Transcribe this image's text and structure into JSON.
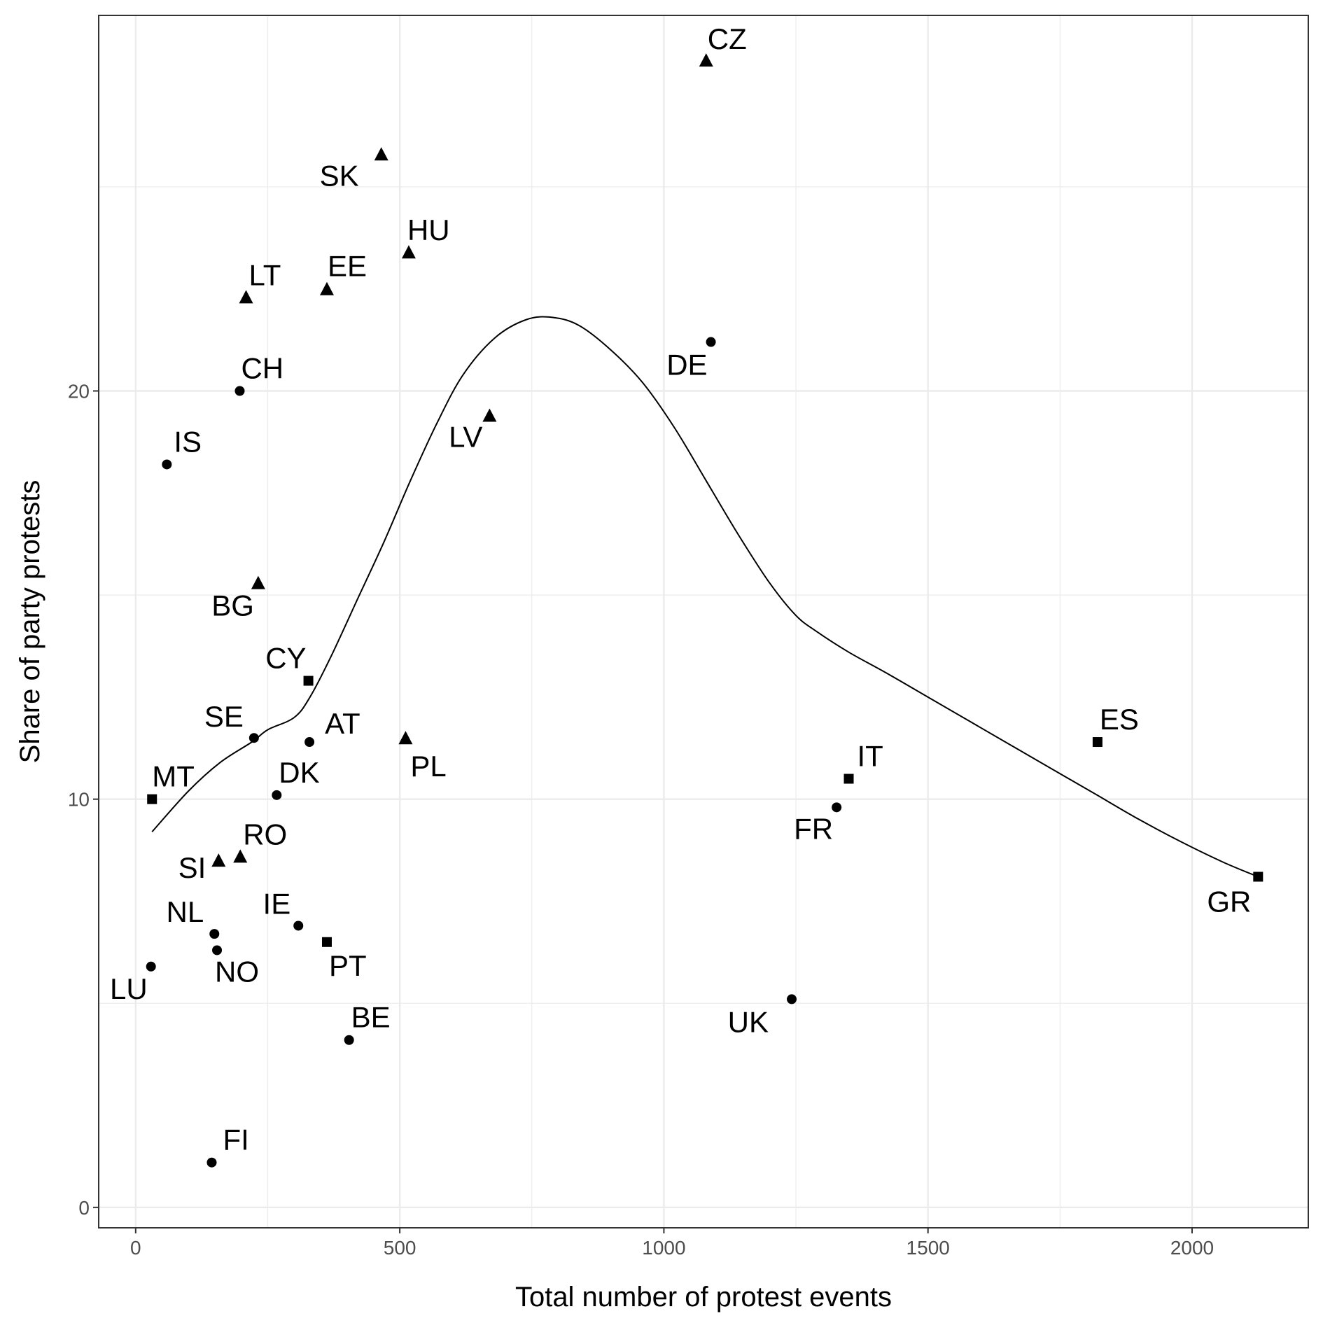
{
  "chart_data": {
    "type": "scatter",
    "title": "",
    "xlabel": "Total number of protest events",
    "ylabel": "Share of party protests",
    "xlim": [
      -70,
      2220
    ],
    "ylim": [
      -0.5,
      29.2
    ],
    "x_ticks": [
      0,
      500,
      1000,
      1500,
      2000
    ],
    "y_ticks": [
      0,
      10,
      20
    ],
    "x_tick_labels": [
      "0",
      "500",
      "1000",
      "1500",
      "2000"
    ],
    "y_tick_labels": [
      "0",
      "10",
      "20"
    ],
    "grid": true,
    "legend": "none",
    "point_color": "#000000",
    "grid_color": "#ebebeb",
    "series": [
      {
        "shape": "triangle",
        "points": [
          {
            "label": "CZ",
            "x": 1080,
            "y": 28.1
          },
          {
            "label": "SK",
            "x": 465,
            "y": 25.8
          },
          {
            "label": "HU",
            "x": 517,
            "y": 23.4
          },
          {
            "label": "EE",
            "x": 362,
            "y": 22.5
          },
          {
            "label": "LT",
            "x": 209,
            "y": 22.3
          },
          {
            "label": "LV",
            "x": 670,
            "y": 19.4
          },
          {
            "label": "BG",
            "x": 232,
            "y": 15.3
          },
          {
            "label": "PL",
            "x": 511,
            "y": 11.5
          },
          {
            "label": "RO",
            "x": 198,
            "y": 8.6
          },
          {
            "label": "SI",
            "x": 157,
            "y": 8.5
          }
        ]
      },
      {
        "shape": "circle",
        "points": [
          {
            "label": "DE",
            "x": 1089,
            "y": 21.2
          },
          {
            "label": "CH",
            "x": 197,
            "y": 20.0
          },
          {
            "label": "IS",
            "x": 59,
            "y": 18.2
          },
          {
            "label": "SE",
            "x": 224,
            "y": 11.5
          },
          {
            "label": "AT",
            "x": 329,
            "y": 11.4
          },
          {
            "label": "DK",
            "x": 267,
            "y": 10.1
          },
          {
            "label": "FR",
            "x": 1327,
            "y": 9.8
          },
          {
            "label": "IE",
            "x": 308,
            "y": 6.9
          },
          {
            "label": "NL",
            "x": 149,
            "y": 6.7
          },
          {
            "label": "NO",
            "x": 154,
            "y": 6.3
          },
          {
            "label": "LU",
            "x": 29,
            "y": 5.9
          },
          {
            "label": "UK",
            "x": 1242,
            "y": 5.1
          },
          {
            "label": "BE",
            "x": 404,
            "y": 4.1
          },
          {
            "label": "FI",
            "x": 144,
            "y": 1.1
          }
        ]
      },
      {
        "shape": "square",
        "points": [
          {
            "label": "CY",
            "x": 327,
            "y": 12.9
          },
          {
            "label": "MT",
            "x": 31,
            "y": 10.0
          },
          {
            "label": "IT",
            "x": 1350,
            "y": 10.5
          },
          {
            "label": "ES",
            "x": 1821,
            "y": 11.4
          },
          {
            "label": "PT",
            "x": 362,
            "y": 6.5
          },
          {
            "label": "GR",
            "x": 2125,
            "y": 8.1
          }
        ]
      }
    ],
    "trend_line": {
      "type": "smooth",
      "x": [
        31,
        100,
        160,
        220,
        250,
        300,
        330,
        370,
        420,
        470,
        520,
        570,
        620,
        680,
        740,
        790,
        840,
        900,
        960,
        1020,
        1080,
        1140,
        1200,
        1250,
        1290,
        1350,
        1420,
        1500,
        1580,
        1660,
        1740,
        1820,
        1900,
        1980,
        2060,
        2125
      ],
      "y": [
        9.2,
        10.2,
        10.9,
        11.4,
        11.7,
        12.0,
        12.5,
        13.5,
        14.9,
        16.3,
        17.8,
        19.2,
        20.4,
        21.3,
        21.75,
        21.8,
        21.6,
        21.0,
        20.2,
        19.1,
        17.8,
        16.5,
        15.3,
        14.5,
        14.1,
        13.6,
        13.1,
        12.5,
        11.9,
        11.3,
        10.7,
        10.1,
        9.5,
        8.95,
        8.45,
        8.1
      ]
    }
  }
}
